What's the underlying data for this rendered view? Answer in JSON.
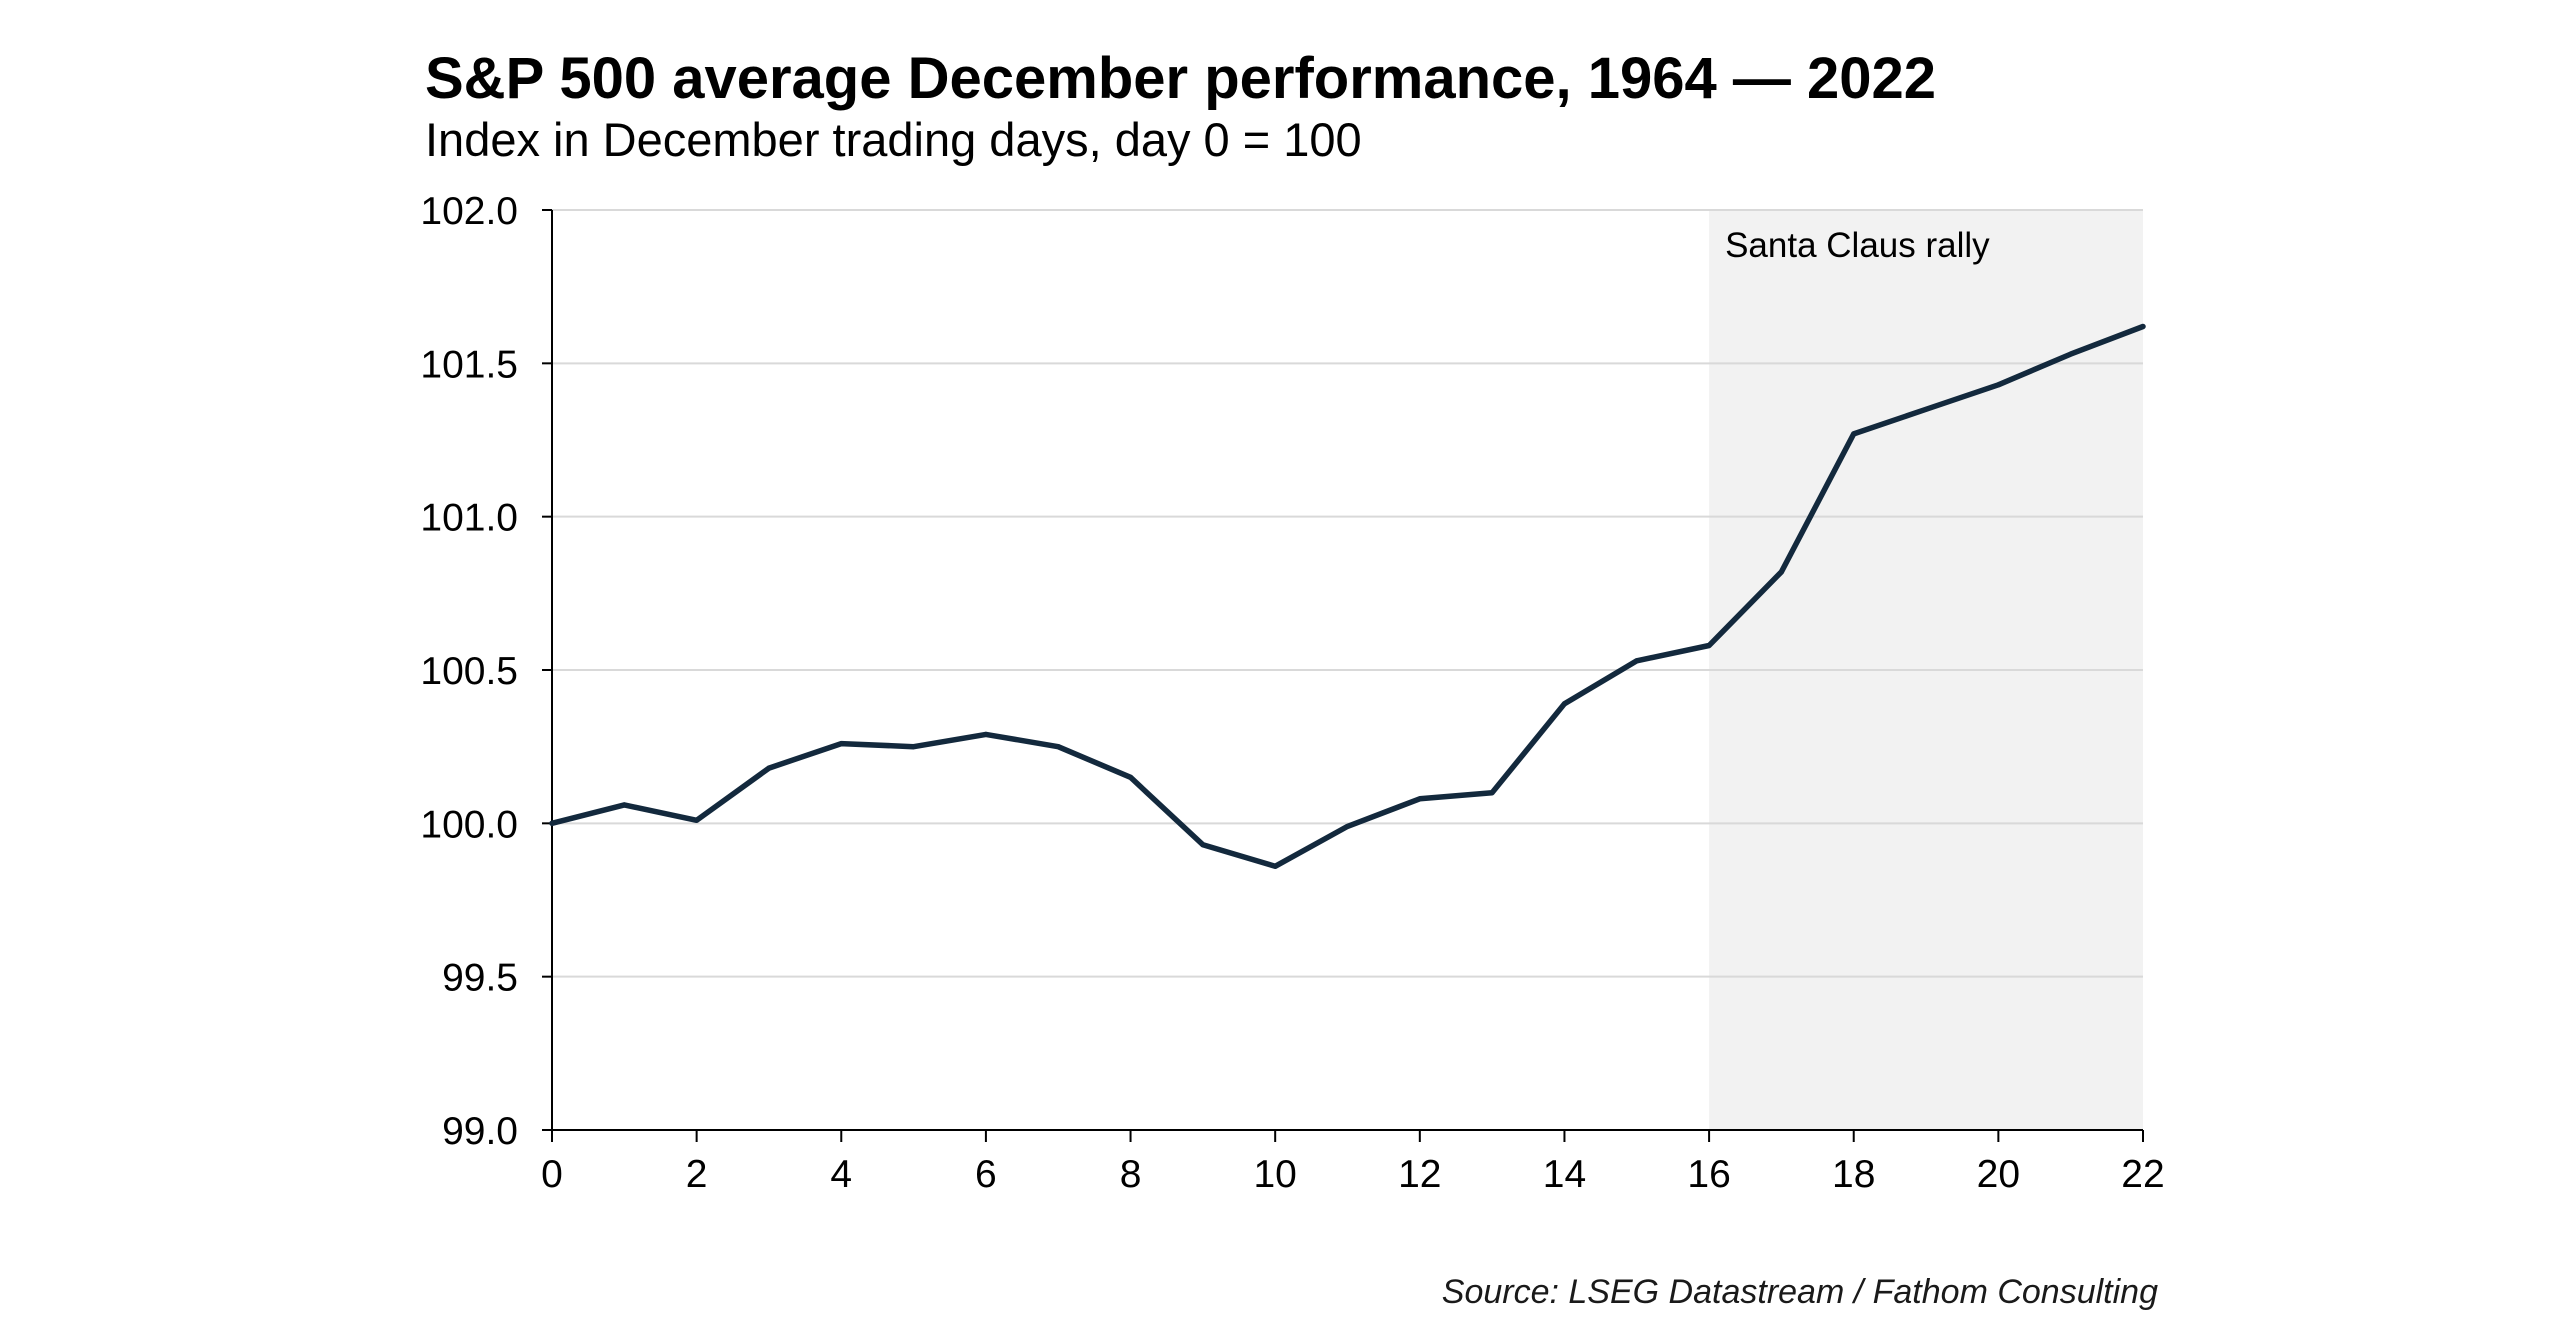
{
  "header": {
    "title": "S&P 500 average December performance, 1964 — 2022",
    "subtitle": "Index in December trading days, day 0 = 100"
  },
  "footer": {
    "source": "Source: LSEG Datastream / Fathom Consulting"
  },
  "chart_data": {
    "type": "line",
    "title": "S&P 500 average December performance, 1964 — 2022",
    "subtitle": "Index in December trading days, day 0 = 100",
    "xlabel": "",
    "ylabel": "",
    "xlim": [
      0,
      22
    ],
    "ylim": [
      99.0,
      102.0
    ],
    "xticks": [
      0,
      2,
      4,
      6,
      8,
      10,
      12,
      14,
      16,
      18,
      20,
      22
    ],
    "yticks": [
      99.0,
      99.5,
      100.0,
      100.5,
      101.0,
      101.5,
      102.0
    ],
    "ytick_labels": [
      "99.0",
      "99.5",
      "100.0",
      "100.5",
      "101.0",
      "101.5",
      "102.0"
    ],
    "grid": "horizontal",
    "line_color": "#13293d",
    "shade_color": "#f2f2f2",
    "grid_color": "#d9d9d9",
    "series": [
      {
        "x": [
          0,
          1,
          2,
          3,
          4,
          5,
          6,
          7,
          8,
          9,
          10,
          11,
          12,
          13,
          14,
          15,
          16,
          17,
          18,
          19,
          20,
          21,
          22
        ],
        "values": [
          100.0,
          100.06,
          100.01,
          100.18,
          100.26,
          100.25,
          100.29,
          100.25,
          100.15,
          99.93,
          99.86,
          99.99,
          100.08,
          100.1,
          100.39,
          100.53,
          100.58,
          100.82,
          101.27,
          101.35,
          101.43,
          101.53,
          101.62
        ]
      }
    ],
    "shaded_region": {
      "x_start": 16,
      "x_end": 22,
      "label": "Santa Claus rally"
    },
    "source": "Source: LSEG Datastream / Fathom Consulting"
  }
}
